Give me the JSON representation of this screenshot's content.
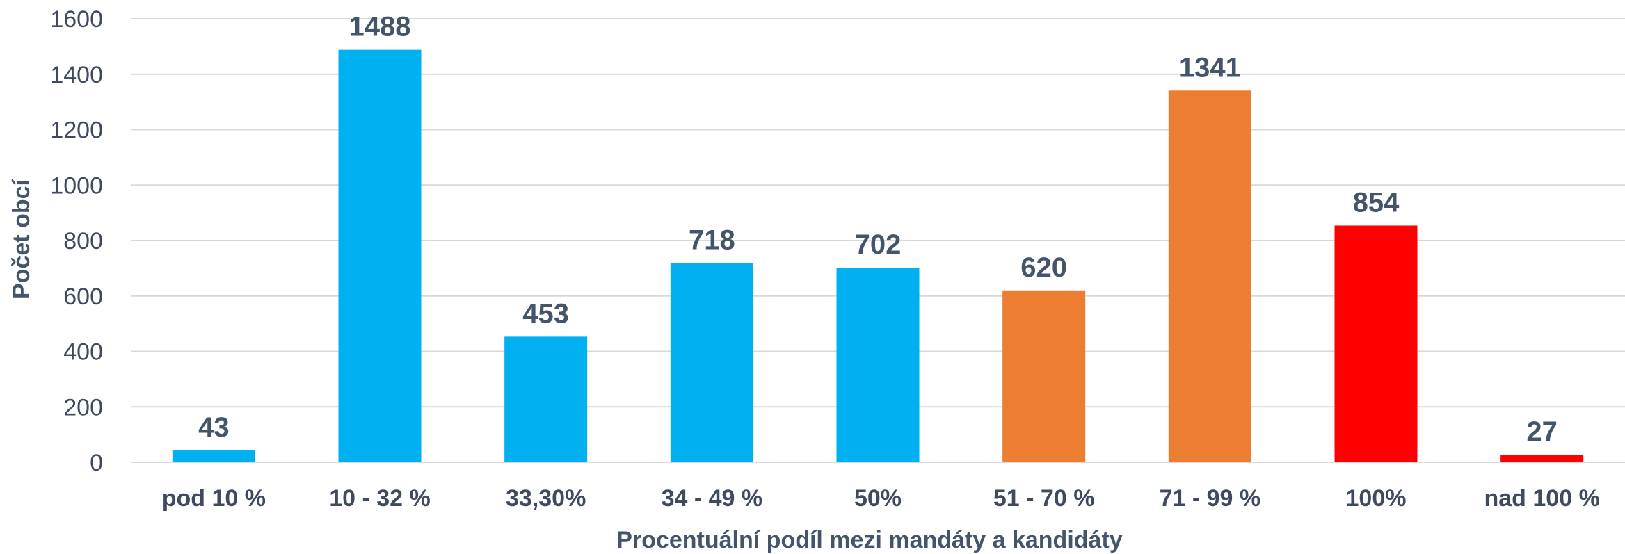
{
  "chart_data": {
    "type": "bar",
    "xlabel": "Procentuální podíl mezi mandáty a kandidáty",
    "ylabel": "Počet obcí",
    "ylim": [
      0,
      1600
    ],
    "yticks": [
      "0",
      "200",
      "400",
      "600",
      "800",
      "1000",
      "1200",
      "1400",
      "1600"
    ],
    "grid": true,
    "legend": "none",
    "data_labels": true,
    "categories": [
      "pod 10 %",
      "10 - 32 %",
      "33,30%",
      "34 - 49 %",
      "50%",
      "51 - 70 %",
      "71 - 99 %",
      "100%",
      "nad 100 %"
    ],
    "values": [
      43,
      1488,
      453,
      718,
      702,
      620,
      1341,
      854,
      27
    ],
    "bar_colors": [
      "#00b0f0",
      "#00b0f0",
      "#00b0f0",
      "#00b0f0",
      "#00b0f0",
      "#ed7d31",
      "#ed7d31",
      "#ff0000",
      "#ff0000"
    ]
  }
}
